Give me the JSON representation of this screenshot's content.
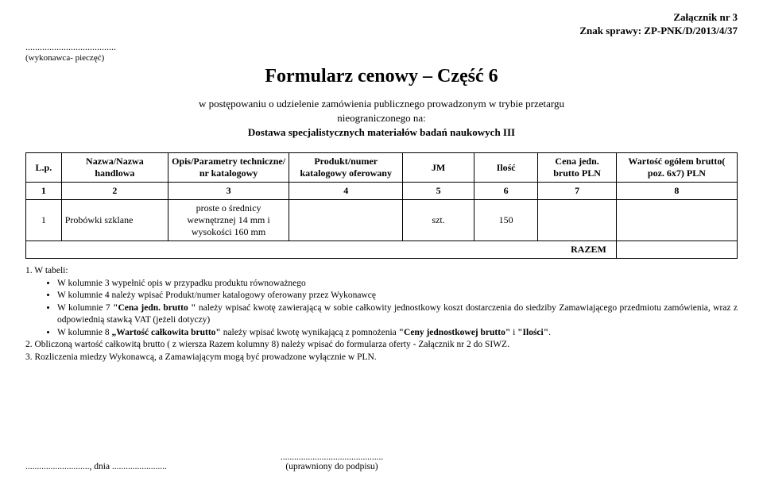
{
  "header": {
    "line1": "Załącznik nr 3",
    "line2": "Znak sprawy: ZP-PNK/D/2013/4/37"
  },
  "dotted": "......................................",
  "wykonawca": "(wykonawca- pieczęć)",
  "title": "Formularz cenowy – Część 6",
  "subtitle": {
    "l1": "w postępowaniu o udzielenie zamówienia publicznego prowadzonym w trybie przetargu",
    "l2": "nieograniczonego na:",
    "l3": "Dostawa specjalistycznych materiałów badań naukowych III"
  },
  "table": {
    "headers": {
      "lp": "L.p.",
      "nazwa": "Nazwa/Nazwa handlowa",
      "opis": "Opis/Parametry techniczne/ nr katalogowy",
      "prod": "Produkt/numer katalogowy oferowany",
      "jm": "JM",
      "ilosc": "Ilość",
      "cena": "Cena jedn. brutto PLN",
      "wart": "Wartość ogółem brutto( poz. 6x7) PLN"
    },
    "numRow": {
      "c1": "1",
      "c2": "2",
      "c3": "3",
      "c4": "4",
      "c5": "5",
      "c6": "6",
      "c7": "7",
      "c8": "8"
    },
    "row1": {
      "lp": "1",
      "nazwa": "Probówki szklane",
      "opis": "proste o średnicy wewnętrznej 14 mm i wysokości 160 mm",
      "prod": "",
      "jm": "szt.",
      "ilosc": "150",
      "cena": "",
      "wart": ""
    },
    "razem": "RAZEM",
    "razem_val": ""
  },
  "notes": {
    "intro": "1. W tabeli:",
    "b1": "W kolumnie 3 wypełnić opis w przypadku produktu równoważnego",
    "b2": "W kolumnie 4 należy wpisać Produkt/numer katalogowy oferowany przez Wykonawcę",
    "b3_a": "W kolumnie 7 ",
    "b3_b": "\"Cena jedn. brutto \"",
    "b3_c": " należy wpisać kwotę zawierającą w sobie całkowity jednostkowy koszt dostarczenia do siedziby Zamawiającego przedmiotu zamówienia, wraz z odpowiednią stawką VAT (jeżeli dotyczy)",
    "b4_a": "W kolumnie 8 ",
    "b4_b": "„Wartość całkowita brutto\"",
    "b4_c": " należy wpisać kwotę wynikającą z pomnożenia ",
    "b4_d": "\"Ceny jednostkowej brutto\"",
    "b4_e": " i ",
    "b4_f": "\"Ilości\"",
    "b4_g": ".",
    "n2": "2. Obliczoną wartość całkowitą brutto ( z wiersza Razem kolumny 8) należy wpisać do formularza oferty - Załącznik nr 2 do SIWZ.",
    "n3": "3. Rozliczenia miedzy Wykonawcą, a Zamawiającym mogą być prowadzone wyłącznie w PLN."
  },
  "footer": {
    "left": "............................, dnia ........................",
    "right_dots": ".............................................",
    "right_label": "(uprawniony do podpisu)"
  }
}
